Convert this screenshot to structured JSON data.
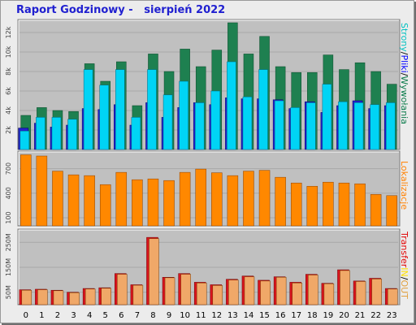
{
  "title": "Raport Godzinowy -   sierpień 2022",
  "legend": {
    "top": [
      {
        "text": "Strony",
        "color": "#00c0c0"
      },
      {
        "text": "/",
        "color": "#000000"
      },
      {
        "text": "Pliki",
        "color": "#0000ff"
      },
      {
        "text": "/",
        "color": "#000000"
      },
      {
        "text": "Wywołania",
        "color": "#0a7a4a"
      }
    ],
    "middle": [
      {
        "text": "Lokalizacje",
        "color": "#ff8000"
      }
    ],
    "bottom": [
      {
        "text": "Transfer",
        "color": "#e00000"
      },
      {
        "text": "IN",
        "color": "#ffe000"
      },
      {
        "text": "/",
        "color": "#000000"
      },
      {
        "text": "OUT",
        "color": "#e0a040"
      }
    ]
  },
  "chart_data": [
    {
      "type": "bar",
      "categories": [
        "0",
        "1",
        "2",
        "3",
        "4",
        "5",
        "6",
        "7",
        "8",
        "9",
        "10",
        "11",
        "12",
        "13",
        "14",
        "15",
        "16",
        "17",
        "18",
        "19",
        "20",
        "21",
        "22",
        "23"
      ],
      "yticks": [
        "2k",
        "4k",
        "6k",
        "8k",
        "10k",
        "12k"
      ],
      "ylim": [
        0,
        13000
      ],
      "series": [
        {
          "name": "Wywołania",
          "color": "#1e8050",
          "values": [
            3500,
            4300,
            4000,
            3900,
            8800,
            7000,
            9000,
            4500,
            9800,
            8000,
            10300,
            8500,
            10200,
            13000,
            9800,
            11600,
            8500,
            7900,
            7900,
            9700,
            8200,
            8900,
            8000,
            6700
          ]
        },
        {
          "name": "Pliki",
          "color": "#2222cc",
          "values": [
            2200,
            2700,
            2300,
            2500,
            4200,
            4100,
            4600,
            2500,
            4800,
            3300,
            4300,
            4800,
            4600,
            5300,
            5200,
            5200,
            5100,
            4200,
            4900,
            3800,
            4500,
            5000,
            4200,
            4500
          ]
        },
        {
          "name": "Strony",
          "color": "#00d4f5",
          "values": [
            1900,
            3300,
            3300,
            3100,
            8200,
            6600,
            8200,
            3300,
            8200,
            5600,
            7000,
            4800,
            6000,
            9000,
            5400,
            8200,
            5000,
            4300,
            4800,
            6700,
            4900,
            4800,
            4600,
            4800
          ]
        }
      ]
    },
    {
      "type": "bar",
      "categories": [
        "0",
        "1",
        "2",
        "3",
        "4",
        "5",
        "6",
        "7",
        "8",
        "9",
        "10",
        "11",
        "12",
        "13",
        "14",
        "15",
        "16",
        "17",
        "18",
        "19",
        "20",
        "21",
        "22",
        "23"
      ],
      "yticks": [
        "100",
        "400",
        "700"
      ],
      "ylim": [
        0,
        875
      ],
      "series": [
        {
          "name": "Lokalizacje",
          "color": "#ff8800",
          "values": [
            870,
            855,
            670,
            625,
            615,
            505,
            655,
            565,
            575,
            555,
            655,
            695,
            650,
            615,
            670,
            680,
            595,
            525,
            485,
            535,
            525,
            515,
            385,
            370
          ]
        }
      ]
    },
    {
      "type": "bar",
      "categories": [
        "0",
        "1",
        "2",
        "3",
        "4",
        "5",
        "6",
        "7",
        "8",
        "9",
        "10",
        "11",
        "12",
        "13",
        "14",
        "15",
        "16",
        "17",
        "18",
        "19",
        "20",
        "21",
        "22",
        "23"
      ],
      "yticks": [
        "50M",
        "150M",
        "250M"
      ],
      "ylim": [
        0,
        290
      ],
      "series": [
        {
          "name": "IN",
          "color": "#d8141e",
          "values": [
            60,
            62,
            58,
            50,
            65,
            68,
            125,
            80,
            270,
            110,
            125,
            90,
            80,
            102,
            115,
            98,
            112,
            90,
            122,
            86,
            140,
            95,
            106,
            65
          ]
        },
        {
          "name": "OUT",
          "color": "#f0a868",
          "values": [
            58,
            60,
            56,
            48,
            63,
            66,
            122,
            78,
            265,
            108,
            122,
            87,
            77,
            99,
            112,
            95,
            110,
            87,
            119,
            84,
            137,
            93,
            103,
            63
          ]
        }
      ]
    }
  ]
}
